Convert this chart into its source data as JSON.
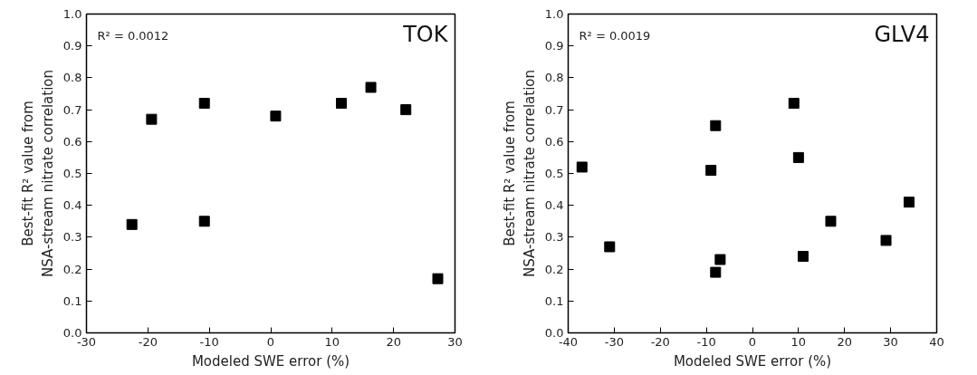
{
  "chart_data": [
    {
      "type": "scatter",
      "title": "TOK",
      "xlabel": "Modeled SWE error (%)",
      "ylabel": "Best-fit R² value from\nNSA-stream nitrate correlation",
      "annotations": [
        "R² = 0.0012"
      ],
      "marker": "square",
      "grid": false,
      "xlim": [
        -30,
        30
      ],
      "xticks": [
        -30,
        -20,
        -10,
        0,
        10,
        20,
        30
      ],
      "ylim": [
        0,
        1
      ],
      "yticks": [
        {
          "value": 0,
          "label": "0.0"
        },
        {
          "value": 0.1,
          "label": "0.1"
        },
        {
          "value": 0.2,
          "label": "0.2"
        },
        {
          "value": 0.3,
          "label": "0.3"
        },
        {
          "value": 0.4,
          "label": "0.4"
        },
        {
          "value": 0.5,
          "label": "0.5"
        },
        {
          "value": 0.6,
          "label": "0.6"
        },
        {
          "value": 0.7,
          "label": "0.7"
        },
        {
          "value": 0.8,
          "label": "0.8"
        },
        {
          "value": 0.9,
          "label": "0.9"
        },
        {
          "value": 1,
          "label": "1.0"
        }
      ],
      "series": [
        {
          "color": "#000000",
          "x": [
            -22.6,
            -19.4,
            -10.8,
            -10.8,
            0.8,
            11.5,
            16.3,
            22.0,
            27.2
          ],
          "values": [
            0.34,
            0.67,
            0.72,
            0.35,
            0.68,
            0.72,
            0.77,
            0.7,
            0.17
          ]
        }
      ]
    },
    {
      "type": "scatter",
      "title": "GLV4",
      "xlabel": "Modeled SWE error (%)",
      "ylabel": "Best-fit R² value from\nNSA-stream nitrate correlation",
      "annotations": [
        "R² = 0.0019"
      ],
      "marker": "square",
      "grid": false,
      "xlim": [
        -40,
        40
      ],
      "xticks": [
        -40,
        -30,
        -20,
        -10,
        0,
        10,
        20,
        30,
        40
      ],
      "ylim": [
        0,
        1
      ],
      "yticks": [
        {
          "value": 0,
          "label": "0.0"
        },
        {
          "value": 0.1,
          "label": "0.1"
        },
        {
          "value": 0.2,
          "label": "0.2"
        },
        {
          "value": 0.3,
          "label": "0.3"
        },
        {
          "value": 0.4,
          "label": "0.4"
        },
        {
          "value": 0.5,
          "label": "0.5"
        },
        {
          "value": 0.6,
          "label": "0.6"
        },
        {
          "value": 0.7,
          "label": "0.7"
        },
        {
          "value": 0.8,
          "label": "0.8"
        },
        {
          "value": 0.9,
          "label": "0.9"
        },
        {
          "value": 1,
          "label": "1.0"
        }
      ],
      "series": [
        {
          "color": "#000000",
          "x": [
            -37,
            -31,
            -9,
            -8,
            -8,
            -7,
            9,
            10,
            11,
            17,
            29,
            34
          ],
          "values": [
            0.52,
            0.27,
            0.51,
            0.65,
            0.19,
            0.23,
            0.72,
            0.55,
            0.24,
            0.35,
            0.29,
            0.41
          ]
        }
      ]
    }
  ]
}
